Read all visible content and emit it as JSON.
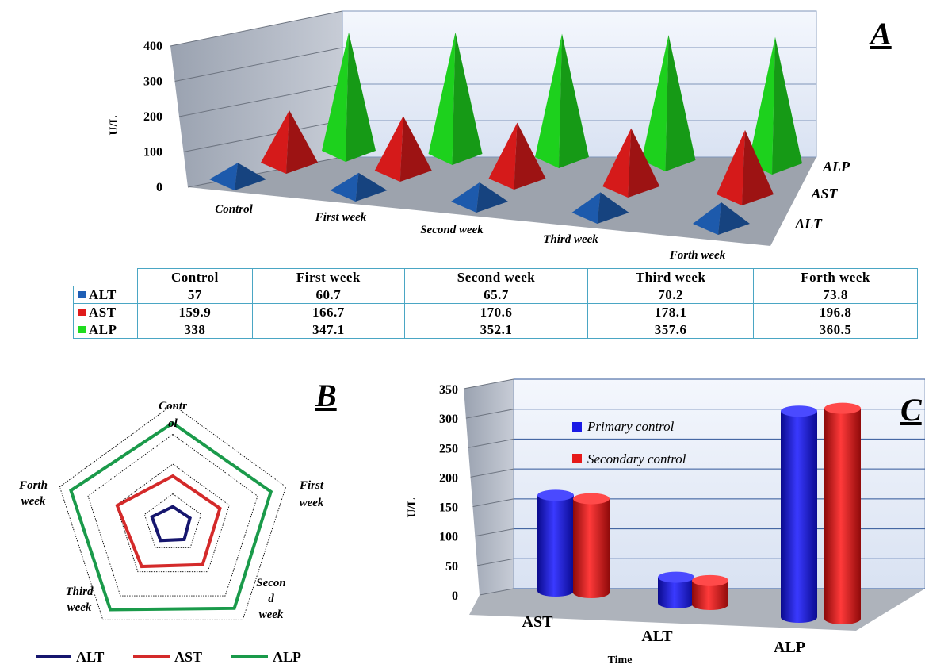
{
  "colors": {
    "alt": "#1f5fb5",
    "ast": "#e01b1b",
    "alp": "#1fdc1f",
    "alt_line": "#16166e",
    "ast_line": "#d42a2a",
    "alp_line": "#1a9a4a",
    "primary": "#1a1ae6",
    "secondary": "#e61a1a",
    "table_border": "#4aa6c4"
  },
  "panels": {
    "a": "A",
    "b": "B",
    "c": "C"
  },
  "chart_data": [
    {
      "type": "bar",
      "panel": "A",
      "style": "3d-pyramid",
      "ylabel": "U/L",
      "ylim": [
        0,
        400
      ],
      "yticks": [
        "0",
        "100",
        "200",
        "300",
        "400"
      ],
      "categories": [
        "Control",
        "First week",
        "Second week",
        "Third week",
        "Forth week"
      ],
      "series": [
        {
          "name": "ALT",
          "values": [
            57,
            60.7,
            65.7,
            70.2,
            73.8
          ]
        },
        {
          "name": "AST",
          "values": [
            159.9,
            166.7,
            170.6,
            178.1,
            196.8
          ]
        },
        {
          "name": "ALP",
          "values": [
            338,
            347.1,
            352.1,
            357.6,
            360.5
          ]
        }
      ],
      "grid": true
    },
    {
      "type": "radar",
      "panel": "B",
      "axes": [
        "Contr ol",
        "First week",
        "Secon d week",
        "Third week",
        "Forth week"
      ],
      "series": [
        {
          "name": "ALT",
          "values": [
            57,
            60.7,
            65.7,
            70.2,
            73.8
          ]
        },
        {
          "name": "AST",
          "values": [
            159.9,
            166.7,
            170.6,
            178.1,
            196.8
          ]
        },
        {
          "name": "ALP",
          "values": [
            338,
            347.1,
            352.1,
            357.6,
            360.5
          ]
        }
      ],
      "legend": [
        "ALT",
        "AST",
        "ALP"
      ],
      "legend_position": "bottom"
    },
    {
      "type": "bar",
      "panel": "C",
      "style": "3d-cylinder",
      "ylabel": "U/L",
      "xlabel": "Time",
      "ylim": [
        0,
        350
      ],
      "yticks": [
        "0",
        "50",
        "100",
        "150",
        "200",
        "250",
        "300",
        "350"
      ],
      "categories": [
        "AST",
        "ALT",
        "ALP"
      ],
      "series": [
        {
          "name": "Primary control",
          "values": [
            160,
            43,
            328
          ]
        },
        {
          "name": "Secondary control",
          "values": [
            157,
            40,
            335
          ]
        }
      ],
      "legend_position": "top-left inside",
      "grid": true
    }
  ],
  "table": {
    "headers": [
      "Control",
      "First week",
      "Second week",
      "Third week",
      "Forth week"
    ],
    "rows": [
      {
        "label": "ALT",
        "cells": [
          "57",
          "60.7",
          "65.7",
          "70.2",
          "73.8"
        ]
      },
      {
        "label": "AST",
        "cells": [
          "159.9",
          "166.7",
          "170.6",
          "178.1",
          "196.8"
        ]
      },
      {
        "label": "ALP",
        "cells": [
          "338",
          "347.1",
          "352.1",
          "357.6",
          "360.5"
        ]
      }
    ]
  }
}
